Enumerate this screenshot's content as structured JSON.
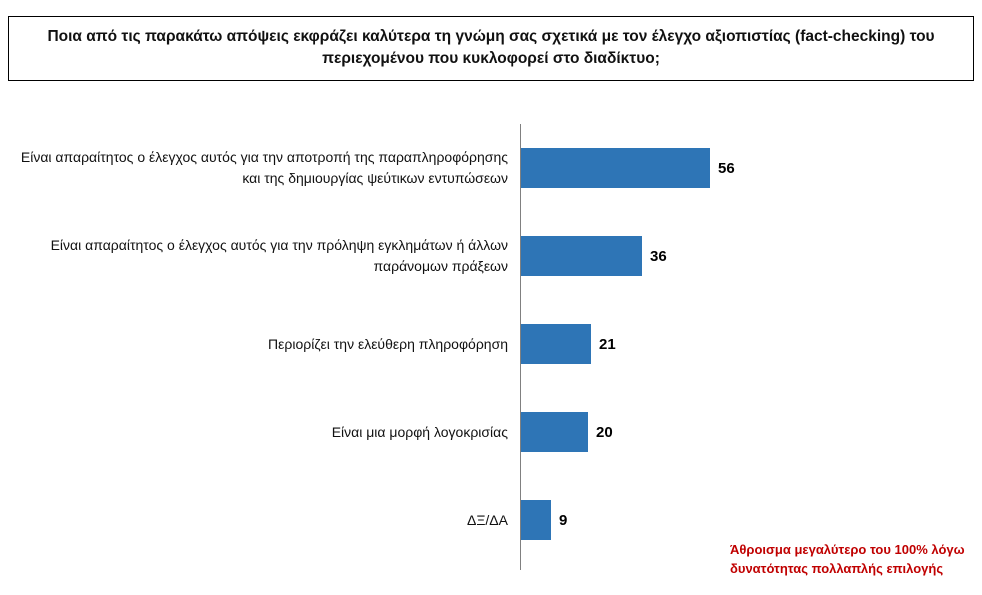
{
  "title": "Ποια από τις παρακάτω απόψεις εκφράζει καλύτερα τη γνώμη σας σχετικά με τον έλεγχο αξιοπιστίας (fact-checking) του περιεχομένου που κυκλοφορεί στο διαδίκτυο;",
  "chart_data": {
    "type": "bar",
    "orientation": "horizontal",
    "categories": [
      "Είναι απαραίτητος ο έλεγχος αυτός για την αποτροπή της παραπληροφόρησης και της δημιουργίας ψεύτικων εντυπώσεων",
      "Είναι απαραίτητος ο έλεγχος αυτός για την πρόληψη εγκλημάτων ή άλλων παράνομων πράξεων",
      "Περιορίζει την ελεύθερη πληροφόρηση",
      "Είναι μια μορφή λογοκρισίας",
      "ΔΞ/ΔΑ"
    ],
    "values": [
      56,
      36,
      21,
      20,
      9
    ],
    "value_labels": [
      "56",
      "36",
      "21",
      "20",
      "9"
    ],
    "bar_color": "#2E75B6",
    "value_label_color": "#000000",
    "grid": false,
    "legend": false
  },
  "footnote": {
    "lines": [
      "Άθροισμα μεγαλύτερο του 100% λόγω",
      "δυνατότητας πολλαπλής επιλογής"
    ],
    "color": "#C00000"
  }
}
